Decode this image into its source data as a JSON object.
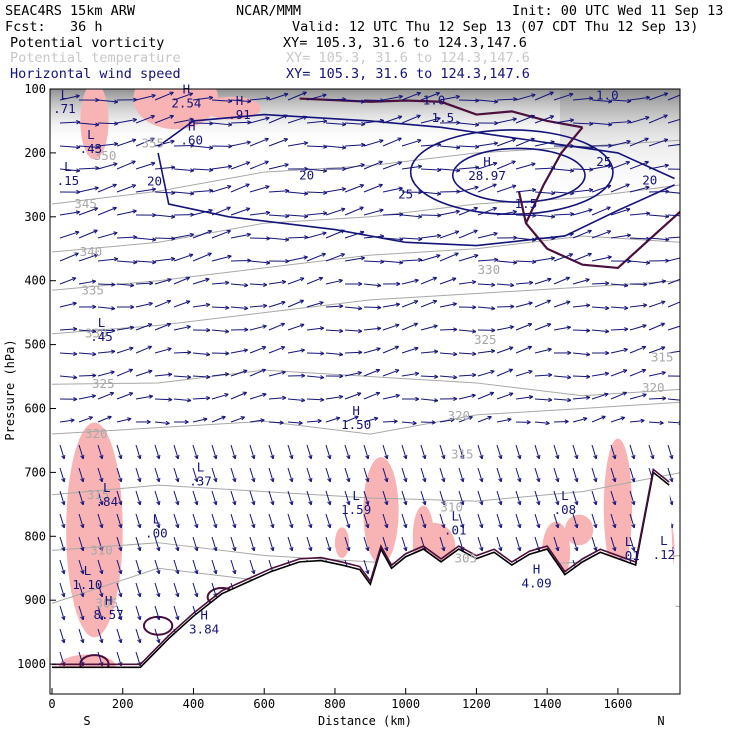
{
  "header": {
    "model": "SEAC4RS 15km ARW",
    "org": "NCAR/MMM",
    "init": "Init: 00 UTC Wed 11 Sep 13",
    "fcst": "Fcst:   36 h",
    "valid": "Valid: 12 UTC Thu 12 Sep 13 (07 CDT Thu 12 Sep 13)",
    "fields": [
      {
        "name": "Potential vorticity",
        "xy": "XY= 105.3, 31.6 to 124.3,147.6",
        "color": "#000000"
      },
      {
        "name": "Potential temperature",
        "xy": "XY= 105.3, 31.6 to 124.3,147.6",
        "color": "#c8c8c8"
      },
      {
        "name": "Horizontal wind speed",
        "xy": "XY= 105.3, 31.6 to 124.3,147.6",
        "color": "#14147a"
      }
    ]
  },
  "chart_data": {
    "type": "cross-section",
    "xlabel": "Distance (km)",
    "ylabel": "Pressure (hPa)",
    "xlim": [
      0,
      1780
    ],
    "ylim": [
      1050,
      100
    ],
    "xticks": [
      "0",
      "200",
      "400",
      "600",
      "800",
      "1000",
      "1200",
      "1400",
      "1600"
    ],
    "yticks": [
      "100",
      "200",
      "300",
      "400",
      "500",
      "600",
      "700",
      "800",
      "900",
      "1000"
    ],
    "endpoints": {
      "left": "S",
      "right": "N"
    },
    "colors": {
      "theta": "#a8a8a8",
      "wind": "#14147a",
      "pv": "#4a0f3c",
      "pv_high": "#f8b4b4",
      "terrain_fill": "#b4b4b4"
    },
    "terrain": [
      [
        0,
        1005
      ],
      [
        250,
        1005
      ],
      [
        330,
        960
      ],
      [
        400,
        925
      ],
      [
        480,
        890
      ],
      [
        560,
        870
      ],
      [
        620,
        855
      ],
      [
        700,
        840
      ],
      [
        760,
        838
      ],
      [
        820,
        845
      ],
      [
        870,
        852
      ],
      [
        900,
        875
      ],
      [
        930,
        820
      ],
      [
        960,
        850
      ],
      [
        1000,
        832
      ],
      [
        1050,
        820
      ],
      [
        1100,
        840
      ],
      [
        1150,
        820
      ],
      [
        1200,
        835
      ],
      [
        1250,
        825
      ],
      [
        1300,
        845
      ],
      [
        1350,
        828
      ],
      [
        1400,
        820
      ],
      [
        1450,
        860
      ],
      [
        1500,
        840
      ],
      [
        1550,
        825
      ],
      [
        1600,
        835
      ],
      [
        1650,
        845
      ],
      [
        1700,
        700
      ],
      [
        1745,
        720
      ]
    ],
    "theta_isentropes": [
      {
        "label": "305",
        "x": 155,
        "p": 905
      },
      {
        "label": "310",
        "x": 140,
        "p": 822
      },
      {
        "label": "315",
        "x": 130,
        "p": 735
      },
      {
        "label": "320",
        "x": 125,
        "p": 640
      },
      {
        "label": "325",
        "x": 145,
        "p": 562
      },
      {
        "label": "330",
        "x": 125,
        "p": 483
      },
      {
        "label": "335",
        "x": 115,
        "p": 415
      },
      {
        "label": "340",
        "x": 110,
        "p": 355
      },
      {
        "label": "345",
        "x": 95,
        "p": 280
      },
      {
        "label": "350",
        "x": 150,
        "p": 205
      },
      {
        "label": "355",
        "x": 285,
        "p": 185
      },
      {
        "label": "315",
        "x": 1160,
        "p": 672
      },
      {
        "label": "320",
        "x": 1150,
        "p": 612
      },
      {
        "label": "325",
        "x": 1225,
        "p": 493
      },
      {
        "label": "330",
        "x": 1235,
        "p": 383
      },
      {
        "label": "315",
        "x": 1725,
        "p": 520
      },
      {
        "label": "320",
        "x": 1700,
        "p": 568
      },
      {
        "label": "310",
        "x": 1130,
        "p": 755
      },
      {
        "label": "305",
        "x": 1170,
        "p": 835
      }
    ],
    "wind_speed_contours": [
      {
        "label": "20",
        "x": 290,
        "p": 245
      },
      {
        "label": "20",
        "x": 720,
        "p": 235
      },
      {
        "label": "25",
        "x": 1000,
        "p": 265
      },
      {
        "label": "25",
        "x": 1560,
        "p": 214
      },
      {
        "label": "20",
        "x": 1690,
        "p": 243
      }
    ],
    "extrema": [
      {
        "kind": "L",
        "value": ".71",
        "x": 35,
        "p": 120
      },
      {
        "kind": "L",
        "value": ".43",
        "x": 110,
        "p": 183
      },
      {
        "kind": "L",
        "value": ".15",
        "x": 45,
        "p": 233
      },
      {
        "kind": "H",
        "value": "2.54",
        "x": 380,
        "p": 112
      },
      {
        "kind": "H",
        "value": ".91",
        "x": 530,
        "p": 130
      },
      {
        "kind": "H",
        "value": ".60",
        "x": 395,
        "p": 170
      },
      {
        "kind": "H",
        "value": "28.97",
        "x": 1230,
        "p": 225
      },
      {
        "kind": "H",
        "value": "1.50",
        "x": 860,
        "p": 615
      },
      {
        "kind": "L",
        "value": ".45",
        "x": 140,
        "p": 477
      },
      {
        "kind": "L",
        "value": ".37",
        "x": 420,
        "p": 703
      },
      {
        "kind": "L",
        "value": ".84",
        "x": 155,
        "p": 735
      },
      {
        "kind": "L",
        "value": "1.59",
        "x": 860,
        "p": 748
      },
      {
        "kind": "L",
        "value": ".00",
        "x": 295,
        "p": 785
      },
      {
        "kind": "L",
        "value": ".01",
        "x": 1140,
        "p": 780
      },
      {
        "kind": "L",
        "value": ".08",
        "x": 1450,
        "p": 748
      },
      {
        "kind": "L",
        "value": "1.10",
        "x": 100,
        "p": 865
      },
      {
        "kind": "H",
        "value": "8.57",
        "x": 160,
        "p": 912
      },
      {
        "kind": "H",
        "value": "3.84",
        "x": 430,
        "p": 935
      },
      {
        "kind": "H",
        "value": "4.09",
        "x": 1370,
        "p": 863
      },
      {
        "kind": "L",
        "value": ".01",
        "x": 1630,
        "p": 820
      },
      {
        "kind": "L",
        "value": ".12",
        "x": 1730,
        "p": 818
      }
    ],
    "pv_contour_labels": [
      {
        "label": "1.0",
        "x": 1080,
        "p": 118
      },
      {
        "label": "1.5",
        "x": 1105,
        "p": 145
      },
      {
        "label": "1.0",
        "x": 1570,
        "p": 110
      },
      {
        "label": "1.5",
        "x": 1340,
        "p": 280
      }
    ]
  }
}
